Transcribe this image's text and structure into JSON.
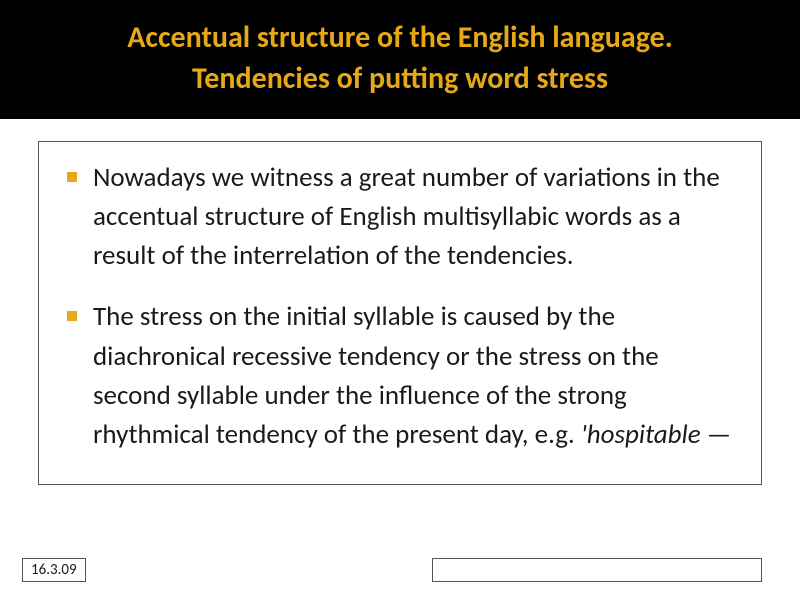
{
  "title": {
    "line1": "Accentual structure of the English language.",
    "line2": "Tendencies of putting word stress",
    "color": "#e6a817",
    "bg": "#000000",
    "fontsize": 30
  },
  "bullets": [
    {
      "text": "Nowadays we witness a great number of variations in the accentual structure of English multisyllabic words as a result of the interrelation of the tendencies."
    },
    {
      "text_prefix": "The stress on the initial syllable is caused by the diachronical recessive tendency or the stress on the second syllable under the influence of the strong rhythmical tendency of the present day, e.g. ",
      "italic_part": "'hospitable —"
    }
  ],
  "bullet_marker_color": "#e6a817",
  "body_fontsize": 27,
  "body_color": "#1a1a1a",
  "date": "16.3.09",
  "border_color": "#555555"
}
